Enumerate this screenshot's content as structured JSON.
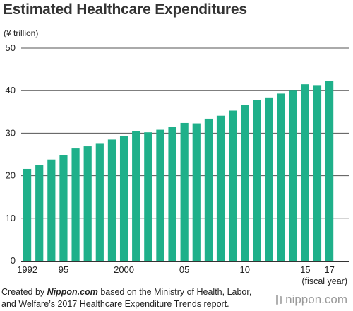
{
  "title": "Estimated Healthcare Expenditures",
  "unit_label": "(¥ trillion)",
  "x_axis_note": "(fiscal year)",
  "source": {
    "prefix": "Created by ",
    "emph": "Nippon.com",
    "suffix": " based on the Ministry of Health, Labor, and Welfare’s 2017 Healthcare Expenditure Trends report."
  },
  "logo_text": "nippon.com",
  "colors": {
    "bar": "#1fb08a",
    "gridline": "#555555",
    "text": "#222222"
  },
  "chart_data": {
    "type": "bar",
    "title": "Estimated Healthcare Expenditures",
    "xlabel": "(fiscal year)",
    "ylabel": "(¥ trillion)",
    "ylim": [
      0,
      50
    ],
    "yticks": [
      0,
      10,
      20,
      30,
      40,
      50
    ],
    "grid": true,
    "categories": [
      "1992",
      "1993",
      "1994",
      "1995",
      "1996",
      "1997",
      "1998",
      "1999",
      "2000",
      "2001",
      "2002",
      "2003",
      "2004",
      "2005",
      "2006",
      "2007",
      "2008",
      "2009",
      "2010",
      "2011",
      "2012",
      "2013",
      "2014",
      "2015",
      "2016",
      "2017"
    ],
    "tick_labels": [
      {
        "category": "1992",
        "label": "1992"
      },
      {
        "category": "1995",
        "label": "95"
      },
      {
        "category": "2000",
        "label": "2000"
      },
      {
        "category": "2005",
        "label": "05"
      },
      {
        "category": "2010",
        "label": "10"
      },
      {
        "category": "2015",
        "label": "15"
      },
      {
        "category": "2017",
        "label": "17"
      }
    ],
    "values": [
      21.6,
      22.5,
      23.8,
      24.9,
      26.4,
      26.9,
      27.5,
      28.5,
      29.4,
      30.4,
      30.2,
      30.8,
      31.4,
      32.4,
      32.3,
      33.4,
      34.1,
      35.3,
      36.6,
      37.8,
      38.4,
      39.3,
      40.0,
      41.5,
      41.3,
      42.2
    ]
  }
}
